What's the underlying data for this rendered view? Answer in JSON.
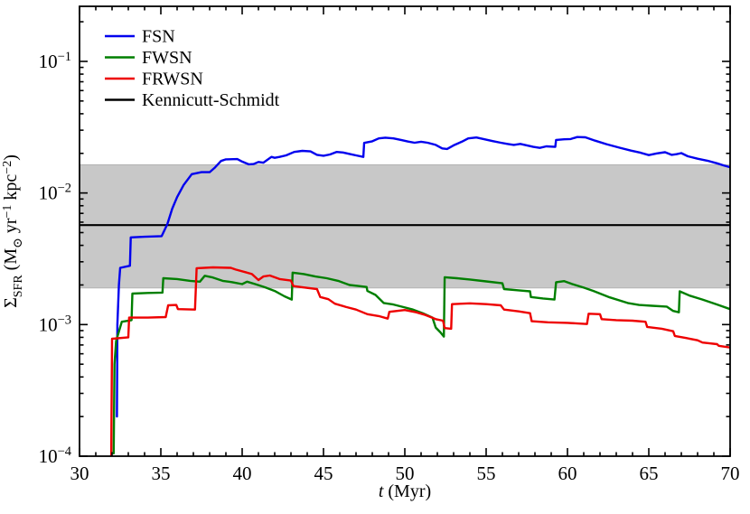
{
  "figure": {
    "xlabel": {
      "var": "t",
      "unit": " (Myr)"
    },
    "ylabel_parts": [
      {
        "text": "Σ",
        "style": "main"
      },
      {
        "text": "SFR",
        "style": "sub"
      },
      {
        "text": " (M",
        "style": "main"
      },
      {
        "text": "⊙",
        "style": "sub"
      },
      {
        "text": " yr",
        "style": "main"
      },
      {
        "text": "−1",
        "style": "sup"
      },
      {
        "text": " kpc",
        "style": "main"
      },
      {
        "text": "−2",
        "style": "sup"
      },
      {
        "text": ")",
        "style": "main"
      }
    ],
    "background_color": "#ffffff",
    "frame_color": "#000000"
  },
  "chart_data": {
    "type": "line",
    "title": "",
    "xlabel": "t (Myr)",
    "ylabel": "Sigma_SFR (M_sun yr^-1 kpc^-2)",
    "xscale": "linear",
    "yscale": "log",
    "xlim": [
      30,
      70
    ],
    "ylim": [
      0.0001,
      0.262
    ],
    "x_major_ticks": [
      30,
      35,
      40,
      45,
      50,
      55,
      60,
      65,
      70
    ],
    "x_minor_tick_step": 1,
    "y_major_tick_exponents": [
      -1,
      -2,
      -3,
      -4
    ],
    "grid": false,
    "legend_position": "upper left",
    "ks_band": {
      "ymin": 0.0019,
      "ymax": 0.0164,
      "color": "#c8c8c8",
      "edge_color": "#b2b2b2"
    },
    "ks_line": {
      "label": "Kennicutt-Schmidt",
      "value": 0.0057,
      "color": "#000000"
    },
    "series": [
      {
        "name": "FSN",
        "color": "#0000ee",
        "points": [
          [
            32.3,
            0.0002
          ],
          [
            32.33,
            0.001
          ],
          [
            32.42,
            0.002
          ],
          [
            32.5,
            0.0027
          ],
          [
            33.1,
            0.0028
          ],
          [
            33.15,
            0.0046
          ],
          [
            34.0,
            0.00465
          ],
          [
            35.05,
            0.0047
          ],
          [
            35.4,
            0.0058
          ],
          [
            35.7,
            0.0076
          ],
          [
            36.0,
            0.0093
          ],
          [
            36.4,
            0.0115
          ],
          [
            36.9,
            0.0139
          ],
          [
            37.5,
            0.0144
          ],
          [
            38.0,
            0.0144
          ],
          [
            38.3,
            0.0155
          ],
          [
            38.7,
            0.0175
          ],
          [
            39.0,
            0.018
          ],
          [
            39.7,
            0.0181
          ],
          [
            40.0,
            0.0173
          ],
          [
            40.4,
            0.0165
          ],
          [
            40.7,
            0.0166
          ],
          [
            41.0,
            0.0172
          ],
          [
            41.3,
            0.017
          ],
          [
            41.8,
            0.0188
          ],
          [
            42.0,
            0.0185
          ],
          [
            42.3,
            0.0188
          ],
          [
            42.7,
            0.0193
          ],
          [
            43.2,
            0.0205
          ],
          [
            43.7,
            0.0209
          ],
          [
            44.2,
            0.0207
          ],
          [
            44.6,
            0.0195
          ],
          [
            45.0,
            0.0192
          ],
          [
            45.4,
            0.0196
          ],
          [
            45.8,
            0.0205
          ],
          [
            46.2,
            0.0203
          ],
          [
            46.6,
            0.0198
          ],
          [
            47.0,
            0.0193
          ],
          [
            47.45,
            0.0188
          ],
          [
            47.5,
            0.024
          ],
          [
            48.0,
            0.0247
          ],
          [
            48.4,
            0.026
          ],
          [
            48.8,
            0.0263
          ],
          [
            49.3,
            0.026
          ],
          [
            49.8,
            0.0252
          ],
          [
            50.2,
            0.0246
          ],
          [
            50.6,
            0.0241
          ],
          [
            51.0,
            0.0245
          ],
          [
            51.4,
            0.0241
          ],
          [
            51.9,
            0.0232
          ],
          [
            52.3,
            0.0218
          ],
          [
            52.6,
            0.0216
          ],
          [
            53.0,
            0.023
          ],
          [
            53.5,
            0.0245
          ],
          [
            53.9,
            0.026
          ],
          [
            54.4,
            0.0264
          ],
          [
            54.9,
            0.0256
          ],
          [
            55.4,
            0.0248
          ],
          [
            55.9,
            0.0241
          ],
          [
            56.3,
            0.0236
          ],
          [
            56.7,
            0.0232
          ],
          [
            57.1,
            0.0236
          ],
          [
            57.5,
            0.023
          ],
          [
            57.9,
            0.0224
          ],
          [
            58.3,
            0.022
          ],
          [
            58.7,
            0.0226
          ],
          [
            59.25,
            0.0224
          ],
          [
            59.3,
            0.0253
          ],
          [
            59.8,
            0.0256
          ],
          [
            60.2,
            0.0257
          ],
          [
            60.6,
            0.0266
          ],
          [
            61.1,
            0.0265
          ],
          [
            61.7,
            0.025
          ],
          [
            62.4,
            0.0235
          ],
          [
            63.2,
            0.0221
          ],
          [
            63.9,
            0.021
          ],
          [
            64.5,
            0.0202
          ],
          [
            65.0,
            0.0194
          ],
          [
            65.5,
            0.02
          ],
          [
            66.0,
            0.0204
          ],
          [
            66.4,
            0.0195
          ],
          [
            66.7,
            0.0197
          ],
          [
            67.0,
            0.0201
          ],
          [
            67.4,
            0.019
          ],
          [
            68.0,
            0.0182
          ],
          [
            68.6,
            0.0176
          ],
          [
            69.2,
            0.0168
          ],
          [
            69.6,
            0.0162
          ],
          [
            70.0,
            0.0157
          ]
        ]
      },
      {
        "name": "FWSN",
        "color": "#007f00",
        "points": [
          [
            32.1,
            0.000105
          ],
          [
            32.15,
            0.0005
          ],
          [
            32.25,
            0.00075
          ],
          [
            32.6,
            0.00105
          ],
          [
            33.2,
            0.00108
          ],
          [
            33.25,
            0.00172
          ],
          [
            34.2,
            0.00174
          ],
          [
            35.1,
            0.00175
          ],
          [
            35.15,
            0.00225
          ],
          [
            36.0,
            0.00222
          ],
          [
            36.8,
            0.00215
          ],
          [
            37.4,
            0.00212
          ],
          [
            37.7,
            0.00235
          ],
          [
            38.2,
            0.00228
          ],
          [
            38.8,
            0.00215
          ],
          [
            39.4,
            0.0021
          ],
          [
            40.0,
            0.00203
          ],
          [
            40.3,
            0.00212
          ],
          [
            40.8,
            0.00203
          ],
          [
            41.4,
            0.00192
          ],
          [
            42.0,
            0.0018
          ],
          [
            42.6,
            0.00164
          ],
          [
            43.05,
            0.00155
          ],
          [
            43.1,
            0.00248
          ],
          [
            43.8,
            0.00242
          ],
          [
            44.5,
            0.00232
          ],
          [
            45.2,
            0.00225
          ],
          [
            45.9,
            0.00215
          ],
          [
            46.6,
            0.002
          ],
          [
            47.2,
            0.00196
          ],
          [
            47.65,
            0.00193
          ],
          [
            47.7,
            0.0018
          ],
          [
            48.2,
            0.00168
          ],
          [
            48.7,
            0.00146
          ],
          [
            49.3,
            0.00142
          ],
          [
            49.9,
            0.00136
          ],
          [
            50.5,
            0.0013
          ],
          [
            51.1,
            0.00122
          ],
          [
            51.7,
            0.00113
          ],
          [
            51.9,
            0.00095
          ],
          [
            52.2,
            0.00087
          ],
          [
            52.4,
            0.00081
          ],
          [
            52.45,
            0.00229
          ],
          [
            53.2,
            0.00225
          ],
          [
            54.0,
            0.0022
          ],
          [
            55.0,
            0.00213
          ],
          [
            56.0,
            0.00206
          ],
          [
            56.1,
            0.00186
          ],
          [
            57.0,
            0.00182
          ],
          [
            57.7,
            0.00179
          ],
          [
            57.75,
            0.00162
          ],
          [
            58.5,
            0.00158
          ],
          [
            59.2,
            0.00155
          ],
          [
            59.3,
            0.0021
          ],
          [
            59.8,
            0.00214
          ],
          [
            60.3,
            0.00203
          ],
          [
            61.0,
            0.00191
          ],
          [
            61.6,
            0.0018
          ],
          [
            62.6,
            0.00161
          ],
          [
            63.7,
            0.00146
          ],
          [
            64.4,
            0.00141
          ],
          [
            65.2,
            0.00139
          ],
          [
            66.1,
            0.00137
          ],
          [
            66.5,
            0.00127
          ],
          [
            66.85,
            0.00124
          ],
          [
            66.9,
            0.00179
          ],
          [
            67.5,
            0.00166
          ],
          [
            68.3,
            0.00155
          ],
          [
            69.2,
            0.00142
          ],
          [
            70.0,
            0.00131
          ]
        ]
      },
      {
        "name": "FRWSN",
        "color": "#ee0000",
        "points": [
          [
            31.95,
            0.0001
          ],
          [
            32.0,
            0.00078
          ],
          [
            33.0,
            0.0008
          ],
          [
            33.05,
            0.00113
          ],
          [
            34.2,
            0.00113
          ],
          [
            35.3,
            0.00114
          ],
          [
            35.45,
            0.0014
          ],
          [
            35.95,
            0.00141
          ],
          [
            36.05,
            0.00131
          ],
          [
            37.1,
            0.0013
          ],
          [
            37.2,
            0.00268
          ],
          [
            38.2,
            0.00272
          ],
          [
            39.3,
            0.0027
          ],
          [
            39.6,
            0.00262
          ],
          [
            40.2,
            0.0025
          ],
          [
            40.6,
            0.00242
          ],
          [
            41.0,
            0.00218
          ],
          [
            41.3,
            0.00232
          ],
          [
            41.7,
            0.00236
          ],
          [
            42.3,
            0.00222
          ],
          [
            43.0,
            0.00216
          ],
          [
            43.15,
            0.00196
          ],
          [
            44.0,
            0.0019
          ],
          [
            44.6,
            0.00186
          ],
          [
            44.8,
            0.00162
          ],
          [
            45.3,
            0.00156
          ],
          [
            45.7,
            0.00144
          ],
          [
            46.4,
            0.00136
          ],
          [
            47.0,
            0.0013
          ],
          [
            47.7,
            0.0012
          ],
          [
            48.4,
            0.00116
          ],
          [
            48.95,
            0.00111
          ],
          [
            49.05,
            0.00125
          ],
          [
            50.0,
            0.00129
          ],
          [
            50.7,
            0.00124
          ],
          [
            51.2,
            0.00119
          ],
          [
            51.9,
            0.0011
          ],
          [
            52.35,
            0.00107
          ],
          [
            52.45,
            0.00094
          ],
          [
            52.85,
            0.00093
          ],
          [
            52.9,
            0.00143
          ],
          [
            54.0,
            0.00145
          ],
          [
            55.0,
            0.00143
          ],
          [
            55.9,
            0.0014
          ],
          [
            56.1,
            0.0013
          ],
          [
            57.0,
            0.00126
          ],
          [
            57.7,
            0.00122
          ],
          [
            57.8,
            0.00106
          ],
          [
            58.8,
            0.00104
          ],
          [
            60.0,
            0.00103
          ],
          [
            61.2,
            0.00101
          ],
          [
            61.3,
            0.00121
          ],
          [
            62.0,
            0.0012
          ],
          [
            62.1,
            0.0011
          ],
          [
            63.0,
            0.00108
          ],
          [
            64.0,
            0.00107
          ],
          [
            64.8,
            0.00105
          ],
          [
            64.9,
            0.00096
          ],
          [
            65.8,
            0.00093
          ],
          [
            66.5,
            0.00089
          ],
          [
            66.6,
            0.00082
          ],
          [
            67.3,
            0.00079
          ],
          [
            68.0,
            0.00076
          ],
          [
            68.3,
            0.00073
          ],
          [
            69.2,
            0.00071
          ],
          [
            69.3,
            0.00069
          ],
          [
            70.0,
            0.00067
          ]
        ]
      }
    ]
  }
}
